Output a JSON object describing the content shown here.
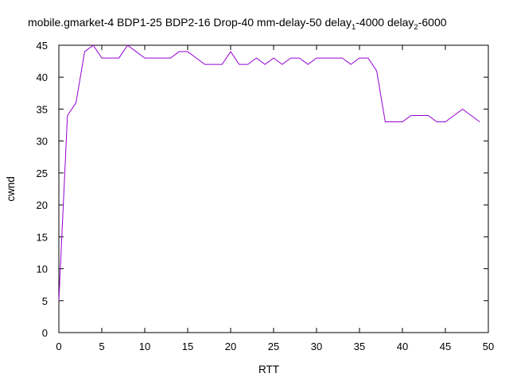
{
  "chart_data": {
    "type": "line",
    "title_parts": [
      {
        "text": "mobile.gmarket-4 BDP1-25 BDP2-16 Drop-40 mm-delay-50 delay",
        "sub": false
      },
      {
        "text": "1",
        "sub": true
      },
      {
        "text": "-4000 delay",
        "sub": false
      },
      {
        "text": "2",
        "sub": true
      },
      {
        "text": "-6000",
        "sub": false
      }
    ],
    "xlabel": "RTT",
    "ylabel": "cwnd",
    "xlim": [
      0,
      50
    ],
    "ylim": [
      0,
      45
    ],
    "xticks": [
      0,
      5,
      10,
      15,
      20,
      25,
      30,
      35,
      40,
      45,
      50
    ],
    "yticks": [
      0,
      5,
      10,
      15,
      20,
      25,
      30,
      35,
      40,
      45
    ],
    "grid": false,
    "line_color": "#9400d3",
    "series": [
      {
        "x": [
          0,
          1,
          2,
          3,
          4,
          5,
          6,
          7,
          8,
          9,
          10,
          11,
          12,
          13,
          14,
          15,
          16,
          17,
          18,
          19,
          20,
          21,
          22,
          23,
          24,
          25,
          26,
          27,
          28,
          29,
          30,
          31,
          32,
          33,
          34,
          35,
          36,
          37,
          38,
          39,
          40,
          41,
          42,
          43,
          44,
          45,
          46,
          47,
          48,
          49
        ],
        "values": [
          5,
          34,
          36,
          44,
          45,
          43,
          43,
          43,
          45,
          44,
          43,
          43,
          43,
          43,
          44,
          44,
          43,
          42,
          42,
          42,
          44,
          42,
          42,
          43,
          42,
          43,
          42,
          43,
          43,
          42,
          43,
          43,
          43,
          43,
          42,
          43,
          43,
          41,
          33,
          33,
          33,
          34,
          34,
          34,
          33,
          33,
          34,
          35,
          34,
          33
        ]
      }
    ]
  }
}
